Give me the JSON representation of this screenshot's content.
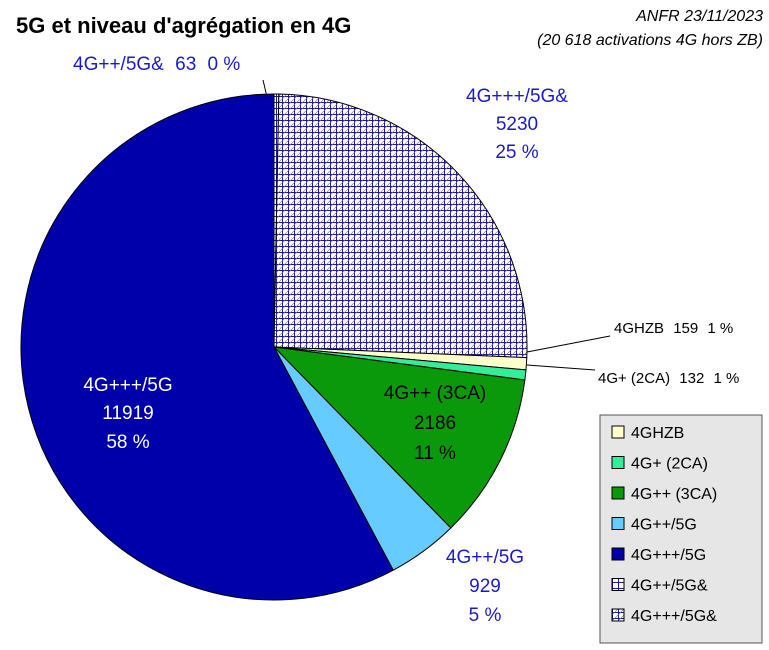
{
  "chart_data": {
    "type": "pie",
    "title": "5G et niveau d'agrégation en 4G",
    "source_line1": "ANFR 23/11/2023",
    "source_line2": "(20 618 activations 4G hors ZB)",
    "slices": [
      {
        "name": "4GHZB",
        "value": 159,
        "percent": "1 %",
        "color": "#ffffcc",
        "pattern": null
      },
      {
        "name": "4G+ (2CA)",
        "value": 132,
        "percent": "1 %",
        "color": "#33ee99",
        "pattern": null
      },
      {
        "name": "4G++ (3CA)",
        "value": 2186,
        "percent": "11 %",
        "color": "#0a990a",
        "pattern": null
      },
      {
        "name": "4G++/5G",
        "value": 929,
        "percent": "5 %",
        "color": "#66ccff",
        "pattern": null
      },
      {
        "name": "4G+++/5G",
        "value": 11919,
        "percent": "58 %",
        "color": "#0000aa",
        "pattern": null
      },
      {
        "name": "4G++/5G&",
        "value": 63,
        "percent": "0 %",
        "color": "#ffffff",
        "pattern": "grid-blue"
      },
      {
        "name": "4G+++/5G&",
        "value": 5230,
        "percent": "25 %",
        "color": "#ffffff",
        "pattern": "grid-navy"
      }
    ],
    "legend": [
      "4GHZB",
      "4G+ (2CA)",
      "4G++ (3CA)",
      "4G++/5G",
      "4G+++/5G",
      "4G++/5G&",
      "4G+++/5G&"
    ],
    "legend_position": "bottom-right"
  }
}
